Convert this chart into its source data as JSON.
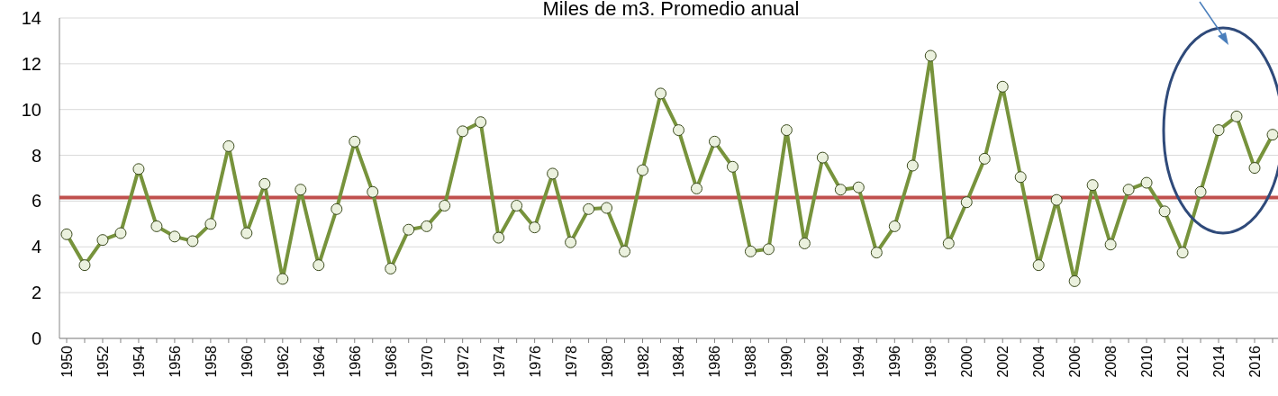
{
  "chart_data": {
    "type": "line",
    "title": "Miles de m3. Promedio anual",
    "categories": [
      "1950",
      null,
      "1952",
      null,
      "1954",
      null,
      "1956",
      null,
      "1958",
      null,
      "1960",
      null,
      "1962",
      null,
      "1964",
      null,
      "1966",
      null,
      "1968",
      null,
      "1970",
      null,
      "1972",
      null,
      "1974",
      null,
      "1976",
      null,
      "1978",
      null,
      "1980",
      null,
      "1982",
      null,
      "1984",
      null,
      "1986",
      null,
      "1988",
      null,
      "1990",
      null,
      "1992",
      null,
      "1994",
      null,
      "1996",
      null,
      "1998",
      null,
      "2000",
      null,
      "2002",
      null,
      "2004",
      null,
      "2006",
      null,
      "2008",
      null,
      "2010",
      null,
      "2012",
      null,
      "2014",
      null,
      "2016",
      null
    ],
    "series": [
      {
        "color": "#77933c",
        "values": [
          4.55,
          3.2,
          4.3,
          4.6,
          7.4,
          4.9,
          4.45,
          4.25,
          5.0,
          8.4,
          4.6,
          6.75,
          2.6,
          6.5,
          3.2,
          5.65,
          8.6,
          6.4,
          3.05,
          4.75,
          4.9,
          5.8,
          9.05,
          9.45,
          4.4,
          5.8,
          4.85,
          7.2,
          4.2,
          5.65,
          5.7,
          3.8,
          7.35,
          10.7,
          9.1,
          6.55,
          8.6,
          7.5,
          3.8,
          3.9,
          9.1,
          4.15,
          7.9,
          6.5,
          6.6,
          3.75,
          4.9,
          7.55,
          12.35,
          4.15,
          5.95,
          7.85,
          11.0,
          7.05,
          3.2,
          6.05,
          2.5,
          6.7,
          4.1,
          6.5,
          6.8,
          5.55,
          3.75,
          6.4,
          9.1,
          9.7,
          7.45,
          8.9
        ]
      }
    ],
    "ylim": [
      0,
      14
    ],
    "yticks": [
      0,
      2,
      4,
      6,
      8,
      10,
      12,
      14
    ],
    "grid": "y",
    "marker": "circle",
    "ref_lines": [
      {
        "axis": "y",
        "value": 6.15,
        "color": "#c0504d"
      }
    ]
  }
}
